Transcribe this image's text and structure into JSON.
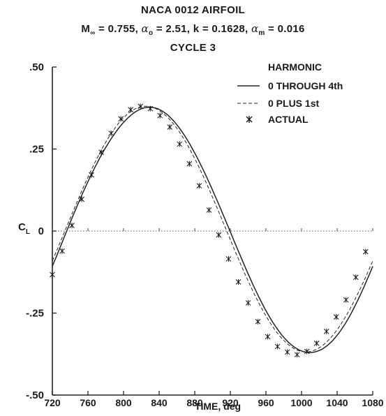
{
  "chart_data": {
    "type": "line",
    "title_lines": {
      "line1": "NACA 0012 AIRFOIL",
      "mach_symbol": "M",
      "mach_sub": "∞",
      "mach_value": " = 0.755, ",
      "alpha_symbol": "α",
      "alpha_o_sub": "o",
      "alpha_o_value": " = 2.51, k = 0.1628, ",
      "alpha_m_sub": "m",
      "alpha_m_value": " = 0.016",
      "line3": "CYCLE 3"
    },
    "xlabel": "TIME, deg",
    "ylabel": "C",
    "ylabel_sub": "L",
    "xlim": [
      720,
      1080
    ],
    "ylim": [
      -0.5,
      0.5
    ],
    "xticks": [
      720,
      760,
      800,
      840,
      880,
      920,
      960,
      1000,
      1040,
      1080
    ],
    "xtick_labels": [
      "720",
      "760",
      "800",
      "840",
      "880",
      "920",
      "960",
      "1000",
      "1040",
      "1080"
    ],
    "yticks": [
      0.5,
      0.25,
      0,
      -0.25,
      -0.5
    ],
    "ytick_labels": [
      ".50",
      ".25",
      "0",
      "-.25",
      "-.50"
    ],
    "legend": {
      "title": "HARMONIC",
      "placement": "top-right",
      "entries": [
        "0 THROUGH 4th",
        "0 PLUS 1st",
        "ACTUAL"
      ]
    },
    "zero_line": true,
    "grid": false,
    "series": [
      {
        "name": "0 THROUGH 4th",
        "style": "solid",
        "model": {
          "mean": 0.006,
          "harmonics": [
            [
              0.3745,
              -18.2
            ],
            [
              0.004,
              40
            ],
            [
              0.0025,
              20
            ],
            [
              0.0015,
              0
            ]
          ]
        }
      },
      {
        "name": "0 PLUS 1st",
        "style": "dashed",
        "model": {
          "mean": 0.006,
          "harmonics": [
            [
              0.3745,
              -15.0
            ]
          ]
        }
      },
      {
        "name": "ACTUAL",
        "style": "marker",
        "marker": "asterisk",
        "x": [
          720,
          731,
          742,
          753,
          764,
          775,
          786,
          797,
          808,
          819,
          830,
          841,
          852,
          863,
          874,
          885,
          896,
          907,
          918,
          929,
          940,
          951,
          962,
          973,
          984,
          995,
          1006,
          1017,
          1028,
          1039,
          1050,
          1061,
          1072
        ],
        "y": [
          -0.133,
          -0.061,
          0.017,
          0.097,
          0.171,
          0.24,
          0.298,
          0.342,
          0.37,
          0.38,
          0.373,
          0.352,
          0.317,
          0.265,
          0.205,
          0.138,
          0.064,
          -0.012,
          -0.085,
          -0.155,
          -0.219,
          -0.276,
          -0.322,
          -0.352,
          -0.369,
          -0.377,
          -0.367,
          -0.342,
          -0.306,
          -0.262,
          -0.21,
          -0.141,
          -0.063
        ]
      }
    ]
  }
}
